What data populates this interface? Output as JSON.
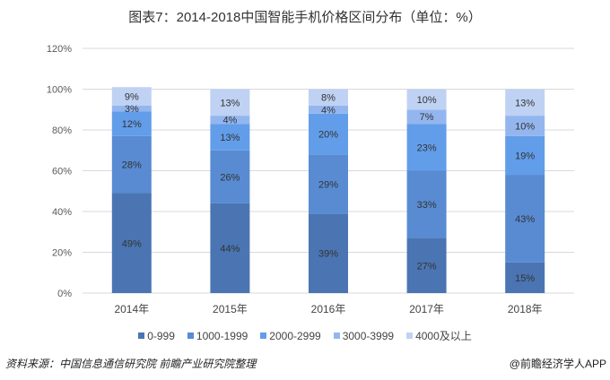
{
  "chart_data": {
    "type": "bar",
    "stacked": true,
    "title": "图表7：2014-2018中国智能手机价格区间分布（单位：%）",
    "categories": [
      "2014年",
      "2015年",
      "2016年",
      "2017年",
      "2018年"
    ],
    "series": [
      {
        "name": "0-999",
        "color": "#4a75b2",
        "values": [
          49,
          44,
          39,
          27,
          15
        ]
      },
      {
        "name": "1000-1999",
        "color": "#588bd2",
        "values": [
          28,
          26,
          29,
          33,
          43
        ]
      },
      {
        "name": "2000-2999",
        "color": "#629de9",
        "values": [
          12,
          13,
          20,
          23,
          19
        ]
      },
      {
        "name": "3000-3999",
        "color": "#93b6ef",
        "values": [
          3,
          4,
          4,
          7,
          10
        ]
      },
      {
        "name": "4000及以上",
        "color": "#bfd2f3",
        "values": [
          9,
          13,
          8,
          10,
          13
        ]
      }
    ],
    "yticks": [
      "0%",
      "20%",
      "40%",
      "60%",
      "80%",
      "100%",
      "120%"
    ],
    "ylim": [
      0,
      120
    ],
    "xlabel": "",
    "ylabel": "",
    "grid": true,
    "legend": "bottom"
  },
  "footer": {
    "source": "资料来源：中国信息通信研究院 前瞻产业研究院整理",
    "credit": "@前瞻经济学人APP"
  }
}
